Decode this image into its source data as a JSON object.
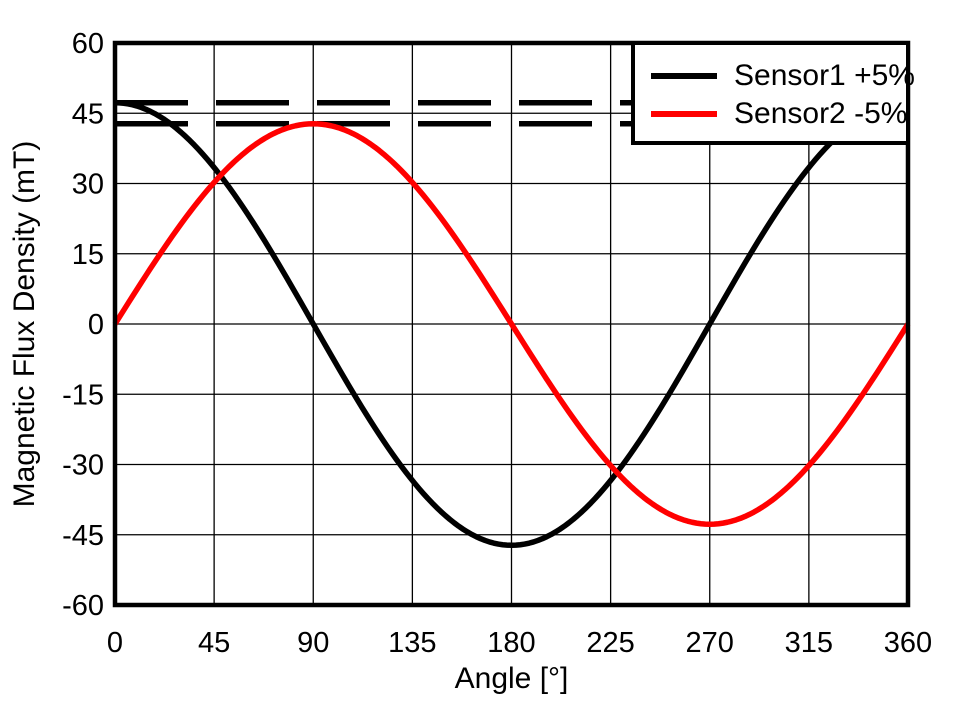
{
  "chart_data": {
    "type": "line",
    "title": "",
    "xlabel": "Angle [°]",
    "ylabel": "Magnetic Flux Density (mT)",
    "xlim": [
      0,
      360
    ],
    "ylim": [
      -60,
      60
    ],
    "xticks": [
      0,
      45,
      90,
      135,
      180,
      225,
      270,
      315,
      360
    ],
    "yticks": [
      -60,
      -45,
      -30,
      -15,
      0,
      15,
      30,
      45,
      60
    ],
    "grid": true,
    "background_color": "#ffffff",
    "axis_color": "#000000",
    "grid_color": "#000000",
    "legend_position": "top-right",
    "x_deg": [
      0,
      15,
      30,
      45,
      60,
      75,
      90,
      105,
      120,
      135,
      150,
      165,
      180,
      195,
      210,
      225,
      240,
      255,
      270,
      285,
      300,
      315,
      330,
      345,
      360
    ],
    "series": [
      {
        "name": "Sensor1 +5%",
        "color": "#000000",
        "waveform": "cos",
        "amplitude_mT": 47.25,
        "values_mT": [
          47.25,
          45.64,
          40.92,
          33.41,
          23.63,
          12.23,
          0,
          -12.23,
          -23.63,
          -33.41,
          -40.92,
          -45.64,
          -47.25,
          -45.64,
          -40.92,
          -33.41,
          -23.63,
          -12.23,
          0,
          12.23,
          23.63,
          33.41,
          40.92,
          45.64,
          47.25
        ]
      },
      {
        "name": "Sensor2 -5%",
        "color": "#ff0000",
        "waveform": "sin",
        "amplitude_mT": 42.75,
        "values_mT": [
          0,
          11.06,
          21.38,
          30.23,
          37.02,
          41.29,
          42.75,
          41.29,
          37.02,
          30.23,
          21.38,
          11.06,
          0,
          -11.06,
          -21.38,
          -30.23,
          -37.02,
          -41.29,
          -42.75,
          -41.29,
          -37.02,
          -30.23,
          -21.38,
          -11.06,
          0
        ]
      }
    ],
    "reference_lines": [
      {
        "y_mT": 47.25,
        "style": "dashed",
        "color": "#000000"
      },
      {
        "y_mT": 42.75,
        "style": "dashed",
        "color": "#000000"
      }
    ]
  }
}
